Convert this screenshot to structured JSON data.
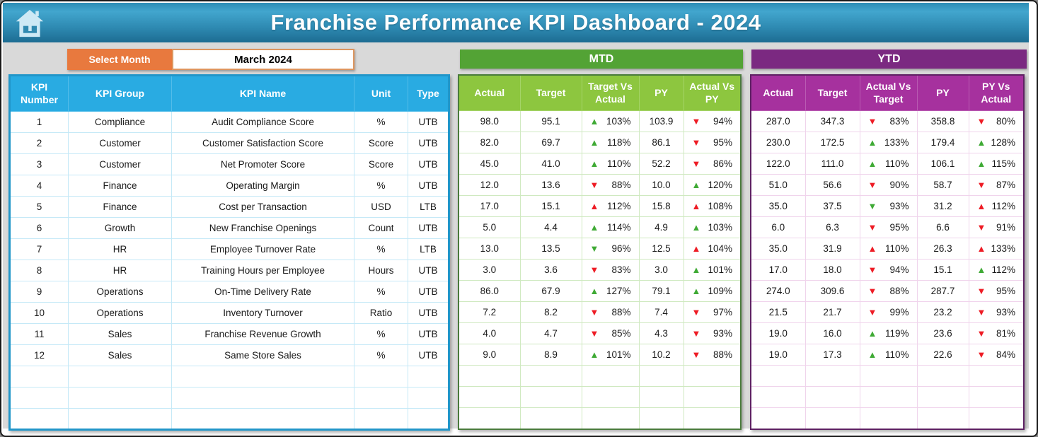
{
  "header": {
    "title": "Franchise Performance KPI Dashboard - 2024"
  },
  "controls": {
    "select_month_label": "Select Month",
    "selected_month": "March 2024"
  },
  "sections": {
    "mtd_label": "MTD",
    "ytd_label": "YTD"
  },
  "empty_row_count": 3,
  "colors": {
    "header_gradient_top": "#42a6ce",
    "header_gradient_bottom": "#1d6c92",
    "kpi_header": "#29abe2",
    "mtd_section_bar": "#53a335",
    "mtd_header": "#8dc63f",
    "ytd_section_bar": "#7b2981",
    "ytd_header": "#a6319e",
    "select_month_bg": "#e8793e",
    "indicator_green": "#3faa35",
    "indicator_red": "#ee1c25",
    "background": "#d9d9d9"
  },
  "kpi_table": {
    "headers": [
      "KPI\nNumber",
      "KPI Group",
      "KPI Name",
      "Unit",
      "Type"
    ],
    "rows": [
      [
        "1",
        "Compliance",
        "Audit Compliance Score",
        "%",
        "UTB"
      ],
      [
        "2",
        "Customer",
        "Customer Satisfaction Score",
        "Score",
        "UTB"
      ],
      [
        "3",
        "Customer",
        "Net Promoter Score",
        "Score",
        "UTB"
      ],
      [
        "4",
        "Finance",
        "Operating Margin",
        "%",
        "UTB"
      ],
      [
        "5",
        "Finance",
        "Cost per Transaction",
        "USD",
        "LTB"
      ],
      [
        "6",
        "Growth",
        "New Franchise Openings",
        "Count",
        "UTB"
      ],
      [
        "7",
        "HR",
        "Employee Turnover Rate",
        "%",
        "LTB"
      ],
      [
        "8",
        "HR",
        "Training Hours per Employee",
        "Hours",
        "UTB"
      ],
      [
        "9",
        "Operations",
        "On-Time Delivery Rate",
        "%",
        "UTB"
      ],
      [
        "10",
        "Operations",
        "Inventory Turnover",
        "Ratio",
        "UTB"
      ],
      [
        "11",
        "Sales",
        "Franchise Revenue Growth",
        "%",
        "UTB"
      ],
      [
        "12",
        "Sales",
        "Same Store Sales",
        "%",
        "UTB"
      ]
    ]
  },
  "mtd_table": {
    "headers": [
      "Actual",
      "Target",
      "Target Vs\nActual",
      "PY",
      "Actual Vs\nPY"
    ],
    "rows": [
      {
        "actual": "98.0",
        "target": "95.1",
        "target_vs_actual": {
          "dir": "up",
          "color": "green",
          "value": "103%"
        },
        "py": "103.9",
        "actual_vs_py": {
          "dir": "down",
          "color": "red",
          "value": "94%"
        }
      },
      {
        "actual": "82.0",
        "target": "69.7",
        "target_vs_actual": {
          "dir": "up",
          "color": "green",
          "value": "118%"
        },
        "py": "86.1",
        "actual_vs_py": {
          "dir": "down",
          "color": "red",
          "value": "95%"
        }
      },
      {
        "actual": "45.0",
        "target": "41.0",
        "target_vs_actual": {
          "dir": "up",
          "color": "green",
          "value": "110%"
        },
        "py": "52.2",
        "actual_vs_py": {
          "dir": "down",
          "color": "red",
          "value": "86%"
        }
      },
      {
        "actual": "12.0",
        "target": "13.6",
        "target_vs_actual": {
          "dir": "down",
          "color": "red",
          "value": "88%"
        },
        "py": "10.0",
        "actual_vs_py": {
          "dir": "up",
          "color": "green",
          "value": "120%"
        }
      },
      {
        "actual": "17.0",
        "target": "15.1",
        "target_vs_actual": {
          "dir": "up",
          "color": "red",
          "value": "112%"
        },
        "py": "15.8",
        "actual_vs_py": {
          "dir": "up",
          "color": "red",
          "value": "108%"
        }
      },
      {
        "actual": "5.0",
        "target": "4.4",
        "target_vs_actual": {
          "dir": "up",
          "color": "green",
          "value": "114%"
        },
        "py": "4.9",
        "actual_vs_py": {
          "dir": "up",
          "color": "green",
          "value": "103%"
        }
      },
      {
        "actual": "13.0",
        "target": "13.5",
        "target_vs_actual": {
          "dir": "down",
          "color": "green",
          "value": "96%"
        },
        "py": "12.5",
        "actual_vs_py": {
          "dir": "up",
          "color": "red",
          "value": "104%"
        }
      },
      {
        "actual": "3.0",
        "target": "3.6",
        "target_vs_actual": {
          "dir": "down",
          "color": "red",
          "value": "83%"
        },
        "py": "3.0",
        "actual_vs_py": {
          "dir": "up",
          "color": "green",
          "value": "101%"
        }
      },
      {
        "actual": "86.0",
        "target": "67.9",
        "target_vs_actual": {
          "dir": "up",
          "color": "green",
          "value": "127%"
        },
        "py": "79.1",
        "actual_vs_py": {
          "dir": "up",
          "color": "green",
          "value": "109%"
        }
      },
      {
        "actual": "7.2",
        "target": "8.2",
        "target_vs_actual": {
          "dir": "down",
          "color": "red",
          "value": "88%"
        },
        "py": "7.4",
        "actual_vs_py": {
          "dir": "down",
          "color": "red",
          "value": "97%"
        }
      },
      {
        "actual": "4.0",
        "target": "4.7",
        "target_vs_actual": {
          "dir": "down",
          "color": "red",
          "value": "85%"
        },
        "py": "4.3",
        "actual_vs_py": {
          "dir": "down",
          "color": "red",
          "value": "93%"
        }
      },
      {
        "actual": "9.0",
        "target": "8.9",
        "target_vs_actual": {
          "dir": "up",
          "color": "green",
          "value": "101%"
        },
        "py": "10.2",
        "actual_vs_py": {
          "dir": "down",
          "color": "red",
          "value": "88%"
        }
      }
    ]
  },
  "ytd_table": {
    "headers": [
      "Actual",
      "Target",
      "Actual Vs\nTarget",
      "PY",
      "PY Vs\nActual"
    ],
    "rows": [
      {
        "actual": "287.0",
        "target": "347.3",
        "actual_vs_target": {
          "dir": "down",
          "color": "red",
          "value": "83%"
        },
        "py": "358.8",
        "py_vs_actual": {
          "dir": "down",
          "color": "red",
          "value": "80%"
        }
      },
      {
        "actual": "230.0",
        "target": "172.5",
        "actual_vs_target": {
          "dir": "up",
          "color": "green",
          "value": "133%"
        },
        "py": "179.4",
        "py_vs_actual": {
          "dir": "up",
          "color": "green",
          "value": "128%"
        }
      },
      {
        "actual": "122.0",
        "target": "111.0",
        "actual_vs_target": {
          "dir": "up",
          "color": "green",
          "value": "110%"
        },
        "py": "106.1",
        "py_vs_actual": {
          "dir": "up",
          "color": "green",
          "value": "115%"
        }
      },
      {
        "actual": "51.0",
        "target": "56.6",
        "actual_vs_target": {
          "dir": "down",
          "color": "red",
          "value": "90%"
        },
        "py": "58.7",
        "py_vs_actual": {
          "dir": "down",
          "color": "red",
          "value": "87%"
        }
      },
      {
        "actual": "35.0",
        "target": "37.5",
        "actual_vs_target": {
          "dir": "down",
          "color": "green",
          "value": "93%"
        },
        "py": "31.2",
        "py_vs_actual": {
          "dir": "up",
          "color": "red",
          "value": "112%"
        }
      },
      {
        "actual": "6.0",
        "target": "6.3",
        "actual_vs_target": {
          "dir": "down",
          "color": "red",
          "value": "95%"
        },
        "py": "6.6",
        "py_vs_actual": {
          "dir": "down",
          "color": "red",
          "value": "91%"
        }
      },
      {
        "actual": "35.0",
        "target": "31.9",
        "actual_vs_target": {
          "dir": "up",
          "color": "red",
          "value": "110%"
        },
        "py": "26.3",
        "py_vs_actual": {
          "dir": "up",
          "color": "red",
          "value": "133%"
        }
      },
      {
        "actual": "17.0",
        "target": "18.0",
        "actual_vs_target": {
          "dir": "down",
          "color": "red",
          "value": "94%"
        },
        "py": "15.1",
        "py_vs_actual": {
          "dir": "up",
          "color": "green",
          "value": "112%"
        }
      },
      {
        "actual": "274.0",
        "target": "309.6",
        "actual_vs_target": {
          "dir": "down",
          "color": "red",
          "value": "88%"
        },
        "py": "287.7",
        "py_vs_actual": {
          "dir": "down",
          "color": "red",
          "value": "95%"
        }
      },
      {
        "actual": "21.5",
        "target": "21.7",
        "actual_vs_target": {
          "dir": "down",
          "color": "red",
          "value": "99%"
        },
        "py": "23.2",
        "py_vs_actual": {
          "dir": "down",
          "color": "red",
          "value": "93%"
        }
      },
      {
        "actual": "19.0",
        "target": "16.0",
        "actual_vs_target": {
          "dir": "up",
          "color": "green",
          "value": "119%"
        },
        "py": "23.6",
        "py_vs_actual": {
          "dir": "down",
          "color": "red",
          "value": "81%"
        }
      },
      {
        "actual": "19.0",
        "target": "17.3",
        "actual_vs_target": {
          "dir": "up",
          "color": "green",
          "value": "110%"
        },
        "py": "22.6",
        "py_vs_actual": {
          "dir": "down",
          "color": "red",
          "value": "84%"
        }
      }
    ]
  }
}
